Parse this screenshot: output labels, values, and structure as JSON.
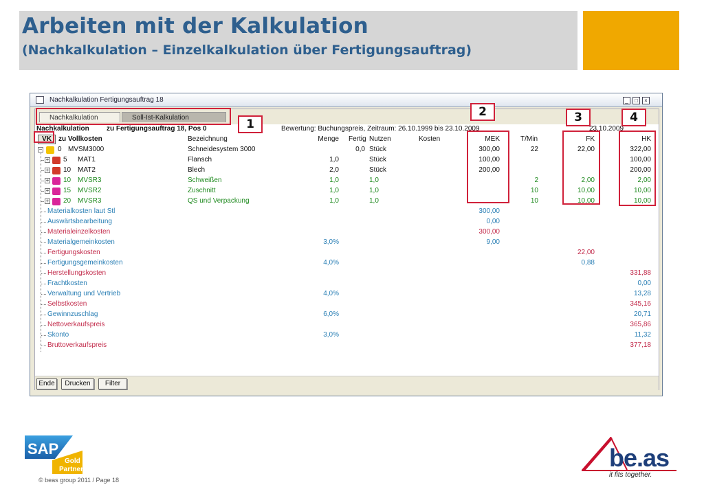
{
  "slide": {
    "title": "Arbeiten mit der Kalkulation",
    "subtitle": "(Nachkalkulation – Einzelkalkulation über Fertigungsauftrag)",
    "footer": "© beas group 2011 / Page 18",
    "sap_logo_text": "SAP",
    "sap_badge_line1": "Gold",
    "sap_badge_line2": "Partner",
    "beas_logo_text": "be.as",
    "beas_tagline": "it fits together."
  },
  "window": {
    "title": "Nachkalkulation Fertigungsauftrag 18",
    "tabs": [
      "Nachkalkulation",
      "Soll-Ist-Kalkulation"
    ],
    "header_left": "Nachkalkulation",
    "header_order": "zu Fertigungsauftrag 18, Pos 0",
    "header_valuation": "Bewertung: Buchungspreis, Zeitraum: 26.10.1999 bis 23.10.2009",
    "header_date": "23.10.2009",
    "vk_label": "VK",
    "full_cost_label": "zu Vollkosten"
  },
  "columns": {
    "bezeichnung": "Bezeichnung",
    "menge": "Menge",
    "fertig": "Fertig",
    "nutzen": "Nutzen",
    "kosten": "Kosten",
    "mek": "MEK",
    "tmin": "T/Min",
    "fk": "FK",
    "hk": "HK"
  },
  "rows": [
    {
      "pos": "0",
      "code": "MVSM3000",
      "bez": "Schneidesystem 3000",
      "menge": "",
      "fertig": "0,0",
      "nutzen": "Stück",
      "mek": "300,00",
      "tmin": "22",
      "fk": "22,00",
      "hk": "322,00",
      "color": "black",
      "icon": "pencil-icon"
    },
    {
      "pos": "5",
      "code": "MAT1",
      "bez": "Flansch",
      "menge": "1,0",
      "fertig": "",
      "nutzen": "Stück",
      "mek": "100,00",
      "tmin": "",
      "fk": "",
      "hk": "100,00",
      "color": "black",
      "icon": "material-icon"
    },
    {
      "pos": "10",
      "code": "MAT2",
      "bez": "Blech",
      "menge": "2,0",
      "fertig": "",
      "nutzen": "Stück",
      "mek": "200,00",
      "tmin": "",
      "fk": "",
      "hk": "200,00",
      "color": "black",
      "icon": "material-icon"
    },
    {
      "pos": "10",
      "code": "MVSR3",
      "bez": "Schweißen",
      "menge": "1,0",
      "fertig": "",
      "nutzen": "1,0",
      "mek": "",
      "tmin": "2",
      "fk": "2,00",
      "hk": "2,00",
      "color": "green",
      "icon": "work-step-icon"
    },
    {
      "pos": "15",
      "code": "MVSR2",
      "bez": "Zuschnitt",
      "menge": "1,0",
      "fertig": "",
      "nutzen": "1,0",
      "mek": "",
      "tmin": "10",
      "fk": "10,00",
      "hk": "10,00",
      "color": "green",
      "icon": "work-step-icon"
    },
    {
      "pos": "20",
      "code": "MVSR3",
      "bez": "QS und Verpackung",
      "menge": "1,0",
      "fertig": "",
      "nutzen": "1,0",
      "mek": "",
      "tmin": "10",
      "fk": "10,00",
      "hk": "10,00",
      "color": "green",
      "icon": "work-step-icon"
    }
  ],
  "summary": [
    {
      "label": "Materialkosten laut Stl",
      "pct": "",
      "mek": "300,00",
      "fk": "",
      "hk": "",
      "color": "blue"
    },
    {
      "label": "Auswärtsbearbeitung",
      "pct": "",
      "mek": "0,00",
      "fk": "",
      "hk": "",
      "color": "blue"
    },
    {
      "label": "Materialeinzelkosten",
      "pct": "",
      "mek": "300,00",
      "fk": "",
      "hk": "",
      "color": "red"
    },
    {
      "label": "Materialgemeinkosten",
      "pct": "3,0%",
      "mek": "9,00",
      "fk": "",
      "hk": "",
      "color": "blue"
    },
    {
      "label": "Fertigungskosten",
      "pct": "",
      "mek": "",
      "fk": "22,00",
      "hk": "",
      "color": "red"
    },
    {
      "label": "Fertigungsgemeinkosten",
      "pct": "4,0%",
      "mek": "",
      "fk": "0,88",
      "hk": "",
      "color": "blue"
    },
    {
      "label": "Herstellungskosten",
      "pct": "",
      "mek": "",
      "fk": "",
      "hk": "331,88",
      "color": "red"
    },
    {
      "label": "Frachtkosten",
      "pct": "",
      "mek": "",
      "fk": "",
      "hk": "0,00",
      "color": "blue"
    },
    {
      "label": "Verwaltung und Vertrieb",
      "pct": "4,0%",
      "mek": "",
      "fk": "",
      "hk": "13,28",
      "color": "blue"
    },
    {
      "label": "Selbstkosten",
      "pct": "",
      "mek": "",
      "fk": "",
      "hk": "345,16",
      "color": "red"
    },
    {
      "label": "Gewinnzuschlag",
      "pct": "6,0%",
      "mek": "",
      "fk": "",
      "hk": "20,71",
      "color": "blue"
    },
    {
      "label": "Nettoverkaufspreis",
      "pct": "",
      "mek": "",
      "fk": "",
      "hk": "365,86",
      "color": "red"
    },
    {
      "label": "Skonto",
      "pct": "3,0%",
      "mek": "",
      "fk": "",
      "hk": "11,32",
      "color": "blue"
    },
    {
      "label": "Bruttoverkaufspreis",
      "pct": "",
      "mek": "",
      "fk": "",
      "hk": "377,18",
      "color": "red"
    }
  ],
  "buttons": {
    "ende": "Ende",
    "drucken": "Drucken",
    "filter": "Filter"
  },
  "callouts": [
    "1",
    "2",
    "3",
    "4"
  ],
  "colors": {
    "title": "#2e5f8e",
    "accent": "#f0a800",
    "callout": "#d0213a",
    "green": "#1f8a1f",
    "blue": "#2a7fb5",
    "red": "#c22a4a"
  }
}
